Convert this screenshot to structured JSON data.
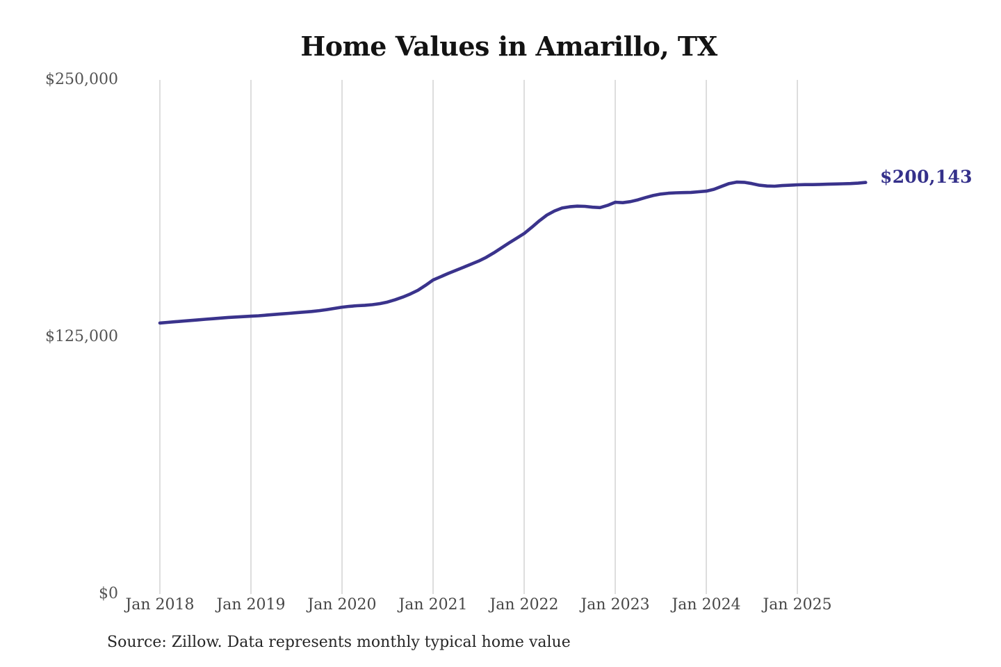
{
  "page": {
    "background": "#ffffff"
  },
  "chart_data": {
    "type": "line",
    "title": "Home Values in Amarillo, TX",
    "series_name": "Monthly typical home value",
    "x_start": "2018-01",
    "x_end": "2025-10",
    "frequency": "monthly",
    "x_tick_labels": [
      "Jan 2018",
      "Jan 2019",
      "Jan 2020",
      "Jan 2021",
      "Jan 2022",
      "Jan 2023",
      "Jan 2024",
      "Jan 2025"
    ],
    "y_ticks": [
      {
        "label": "$250,000",
        "value": 250000
      },
      {
        "label": "$125,000",
        "value": 125000
      },
      {
        "label": "$0",
        "value": 0
      }
    ],
    "ylim": [
      0,
      250000
    ],
    "grid": "vertical-year-gridlines-only",
    "legend": "none",
    "values": [
      131800,
      132100,
      132400,
      132700,
      133000,
      133300,
      133600,
      133900,
      134200,
      134500,
      134700,
      134900,
      135100,
      135300,
      135600,
      135900,
      136200,
      136500,
      136800,
      137100,
      137400,
      137800,
      138300,
      138900,
      139500,
      139900,
      140200,
      140400,
      140700,
      141200,
      142000,
      143100,
      144400,
      145900,
      147700,
      150100,
      152700,
      154300,
      155900,
      157400,
      158900,
      160400,
      161900,
      163700,
      165900,
      168300,
      170700,
      173000,
      175300,
      178300,
      181500,
      184300,
      186300,
      187700,
      188300,
      188600,
      188500,
      188100,
      187900,
      189000,
      190500,
      190300,
      190800,
      191700,
      192800,
      193800,
      194500,
      194900,
      195100,
      195200,
      195300,
      195600,
      195900,
      196800,
      198200,
      199600,
      200300,
      200200,
      199600,
      198800,
      198400,
      198300,
      198600,
      198800,
      199000,
      199100,
      199100,
      199200,
      199300,
      199400,
      199500,
      199600,
      199800,
      200143
    ],
    "latest_value": 200143,
    "latest_value_label": "$200,143",
    "line_color": "#3a338c",
    "label_color": "#34308a",
    "grid_color": "#cbcbcb",
    "source_note": "Source: Zillow. Data represents monthly typical home value"
  }
}
